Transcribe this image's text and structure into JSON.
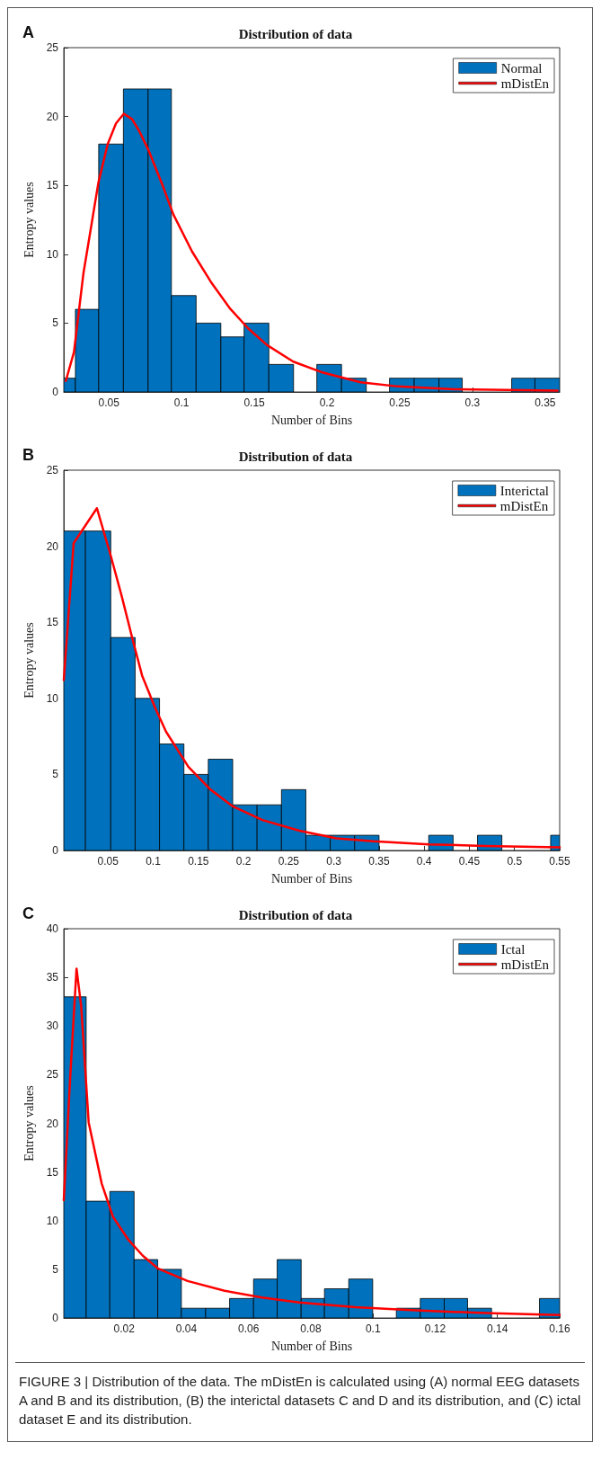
{
  "chart_data": [
    {
      "type": "histogram",
      "title": "Distribution of data",
      "xlabel": "Number of Bins",
      "ylabel": "Entropy values",
      "annotations": [
        "A"
      ],
      "xlim": [
        0.019,
        0.36
      ],
      "ylim": [
        0,
        25
      ],
      "xticks": [
        0.05,
        0.1,
        0.15,
        0.2,
        0.25,
        0.3,
        0.35
      ],
      "yticks": [
        0,
        5,
        10,
        15,
        20,
        25
      ],
      "grid": false,
      "legend": "top right",
      "marker": "none",
      "line_style": "solid",
      "series": [
        {
          "name": "Normal",
          "color": "#0072bd",
          "bins": [
            0.019,
            0.027,
            0.043,
            0.06,
            0.077,
            0.093,
            0.11,
            0.127,
            0.143,
            0.16,
            0.177,
            0.193,
            0.21,
            0.227,
            0.243,
            0.26,
            0.277,
            0.293,
            0.327,
            0.343,
            0.36
          ],
          "values": [
            1,
            6,
            18,
            22,
            22,
            7,
            5,
            4,
            5,
            2,
            0,
            2,
            1,
            0,
            1,
            1,
            1,
            0,
            1,
            1
          ]
        },
        {
          "name": "mDistEn",
          "type": "line",
          "color": "#ff0000",
          "x": [
            0.0204,
            0.026,
            0.0325,
            0.0428,
            0.0492,
            0.0549,
            0.0603,
            0.066,
            0.0711,
            0.0771,
            0.0866,
            0.0943,
            0.1072,
            0.1201,
            0.133,
            0.1459,
            0.1588,
            0.1768,
            0.1974,
            0.2232,
            0.249,
            0.2876,
            0.3585
          ],
          "values": [
            0.8,
            2.9,
            8.6,
            15.2,
            18.0,
            19.5,
            20.2,
            19.8,
            18.9,
            17.6,
            15.1,
            12.9,
            10.2,
            8.0,
            6.1,
            4.6,
            3.4,
            2.2,
            1.4,
            0.7,
            0.4,
            0.2,
            0.1
          ]
        }
      ]
    },
    {
      "type": "histogram",
      "title": "Distribution of data",
      "xlabel": "Number of Bins",
      "ylabel": "Entropy values",
      "annotations": [
        "B"
      ],
      "xlim": [
        0.001,
        0.55
      ],
      "ylim": [
        0,
        25
      ],
      "xticks": [
        0.05,
        0.1,
        0.15,
        0.2,
        0.25,
        0.3,
        0.35,
        0.4,
        0.45,
        0.5,
        0.55
      ],
      "yticks": [
        0,
        5,
        10,
        15,
        20,
        25
      ],
      "grid": false,
      "legend": "top right",
      "marker": "none",
      "line_style": "solid",
      "series": [
        {
          "name": "Interictal",
          "color": "#0072bd",
          "bins": [
            0.001,
            0.025,
            0.053,
            0.08,
            0.107,
            0.134,
            0.161,
            0.188,
            0.215,
            0.242,
            0.269,
            0.296,
            0.323,
            0.35,
            0.405,
            0.432,
            0.459,
            0.486,
            0.54,
            0.55
          ],
          "values": [
            21,
            21,
            14,
            10,
            7,
            5,
            6,
            3,
            3,
            4,
            1,
            1,
            1,
            0,
            1,
            0,
            1,
            0,
            1
          ]
        },
        {
          "name": "mDistEn",
          "type": "line",
          "color": "#ff0000",
          "x": [
            0.001,
            0.0119,
            0.0377,
            0.0529,
            0.0652,
            0.0775,
            0.0877,
            0.102,
            0.1143,
            0.1389,
            0.1635,
            0.1881,
            0.2209,
            0.2619,
            0.3029,
            0.3439,
            0.4053,
            0.4668,
            0.55
          ],
          "values": [
            11.2,
            20.2,
            22.5,
            19.4,
            16.7,
            13.8,
            11.5,
            9.4,
            7.8,
            5.5,
            4.0,
            2.9,
            2.0,
            1.3,
            0.8,
            0.6,
            0.4,
            0.3,
            0.2
          ]
        }
      ]
    },
    {
      "type": "histogram",
      "title": "Distribution of data",
      "xlabel": "Number of Bins",
      "ylabel": "Entropy values",
      "annotations": [
        "C",
        "FIGURE 3 | Distribution of the data. The mDistEn is calculated using (A) normal EEG datasets A and B and its distribution, (B) the interictal datasets C and D and its distribution, and (C) ictal dataset E and its distribution."
      ],
      "xlim": [
        0.0006,
        0.16
      ],
      "ylim": [
        0,
        40
      ],
      "xticks": [
        0.02,
        0.04,
        0.06,
        0.08,
        0.1,
        0.12,
        0.14,
        0.16
      ],
      "yticks": [
        0,
        5,
        10,
        15,
        20,
        25,
        30,
        35,
        40
      ],
      "grid": false,
      "legend": "top right",
      "marker": "none",
      "line_style": "solid",
      "series": [
        {
          "name": "Ictal",
          "color": "#0072bd",
          "bins": [
            0.0006,
            0.0078,
            0.0154,
            0.0232,
            0.0308,
            0.0384,
            0.0462,
            0.0539,
            0.0616,
            0.0692,
            0.0769,
            0.0844,
            0.0922,
            0.0999,
            0.1075,
            0.1152,
            0.1229,
            0.1304,
            0.1381,
            0.1535,
            0.16
          ],
          "values": [
            33,
            12,
            13,
            6,
            5,
            1,
            1,
            2,
            4,
            6,
            2,
            3,
            4,
            0,
            1,
            2,
            2,
            1,
            0,
            2
          ]
        },
        {
          "name": "mDistEn",
          "type": "line",
          "color": "#ff0000",
          "x": [
            0.0006,
            0.0026,
            0.0047,
            0.0062,
            0.0086,
            0.0128,
            0.0164,
            0.0212,
            0.026,
            0.0308,
            0.0404,
            0.0523,
            0.0643,
            0.0763,
            0.0943,
            0.1122,
            0.1362,
            0.16
          ],
          "values": [
            12.1,
            24.4,
            35.9,
            32,
            20.1,
            13.8,
            10.4,
            8.1,
            6.4,
            5.1,
            3.8,
            2.8,
            2.1,
            1.6,
            1.1,
            0.8,
            0.5,
            0.3
          ]
        }
      ]
    }
  ]
}
